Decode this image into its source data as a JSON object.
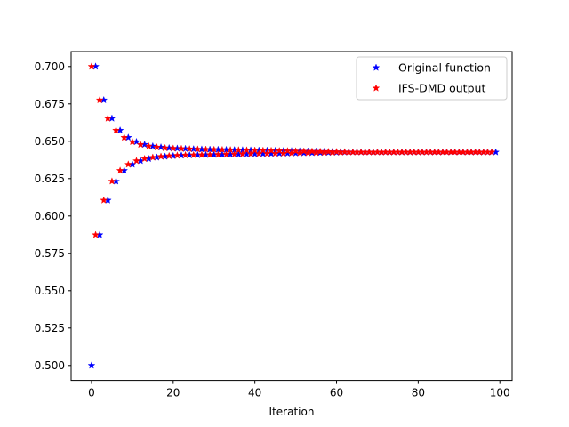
{
  "chart_data": {
    "type": "scatter",
    "title": "",
    "xlabel": "Iteration",
    "ylabel": "",
    "xlim": [
      -5,
      103
    ],
    "ylim": [
      0.49,
      0.71
    ],
    "xticks": [
      0,
      20,
      40,
      60,
      80,
      100
    ],
    "xtick_labels": [
      "0",
      "20",
      "40",
      "60",
      "80",
      "100"
    ],
    "yticks": [
      0.5,
      0.525,
      0.55,
      0.575,
      0.6,
      0.625,
      0.65,
      0.675,
      0.7
    ],
    "ytick_labels": [
      "0.500",
      "0.525",
      "0.550",
      "0.575",
      "0.600",
      "0.625",
      "0.650",
      "0.675",
      "0.700"
    ],
    "grid": false,
    "legend_position": "top-right",
    "marker": "star",
    "series": [
      {
        "name": "Original function",
        "color": "#0000ff",
        "x_start": 0,
        "x_end": 99,
        "values": [
          0.5,
          0.7,
          0.5874,
          0.6776,
          0.6105,
          0.6653,
          0.6232,
          0.6573,
          0.6304,
          0.6525,
          0.6345,
          0.6496,
          0.6369,
          0.6478,
          0.6383,
          0.6467,
          0.6392,
          0.646,
          0.6398,
          0.6455,
          0.6402,
          0.6452,
          0.6405,
          0.645,
          0.6407,
          0.6448,
          0.6408,
          0.6446,
          0.6409,
          0.6445,
          0.641,
          0.6444,
          0.6411,
          0.6443,
          0.6412,
          0.6442,
          0.6413,
          0.6441,
          0.6414,
          0.644,
          0.6415,
          0.6439,
          0.6416,
          0.6438,
          0.6417,
          0.6437,
          0.6418,
          0.6436,
          0.6419,
          0.6435,
          0.642,
          0.6434,
          0.6421,
          0.6433,
          0.6422,
          0.6432,
          0.6423,
          0.6431,
          0.6424,
          0.643,
          0.6425,
          0.6429,
          0.6426,
          0.6428,
          0.6427,
          0.6427,
          0.6427,
          0.6427,
          0.6427,
          0.6427,
          0.6427,
          0.6427,
          0.6427,
          0.6427,
          0.6427,
          0.6427,
          0.6427,
          0.6427,
          0.6427,
          0.6427,
          0.6427,
          0.6427,
          0.6427,
          0.6427,
          0.6427,
          0.6427,
          0.6427,
          0.6427,
          0.6427,
          0.6427,
          0.6427,
          0.6427,
          0.6427,
          0.6427,
          0.6427,
          0.6427,
          0.6427,
          0.6427,
          0.6427,
          0.6427
        ]
      },
      {
        "name": "IFS-DMD output",
        "color": "#ff0000",
        "x_start": 0,
        "x_end": 98,
        "values": [
          0.7,
          0.5874,
          0.6776,
          0.6105,
          0.6653,
          0.6232,
          0.6573,
          0.6304,
          0.6525,
          0.6345,
          0.6496,
          0.6369,
          0.6478,
          0.6383,
          0.6467,
          0.6392,
          0.646,
          0.6398,
          0.6455,
          0.6402,
          0.6452,
          0.6405,
          0.645,
          0.6407,
          0.6448,
          0.6408,
          0.6446,
          0.6409,
          0.6445,
          0.641,
          0.6444,
          0.6411,
          0.6443,
          0.6412,
          0.6442,
          0.6413,
          0.6441,
          0.6414,
          0.644,
          0.6415,
          0.6439,
          0.6416,
          0.6438,
          0.6417,
          0.6437,
          0.6418,
          0.6436,
          0.6419,
          0.6435,
          0.642,
          0.6434,
          0.6421,
          0.6433,
          0.6422,
          0.6432,
          0.6423,
          0.6431,
          0.6424,
          0.643,
          0.6425,
          0.6429,
          0.6426,
          0.6428,
          0.6427,
          0.6427,
          0.6427,
          0.6427,
          0.6427,
          0.6427,
          0.6427,
          0.6427,
          0.6427,
          0.6427,
          0.6427,
          0.6427,
          0.6427,
          0.6427,
          0.6427,
          0.6427,
          0.6427,
          0.6427,
          0.6427,
          0.6427,
          0.6427,
          0.6427,
          0.6427,
          0.6427,
          0.6427,
          0.6427,
          0.6427,
          0.6427,
          0.6427,
          0.6427,
          0.6427,
          0.6427,
          0.6427,
          0.6427,
          0.6427,
          0.6427
        ]
      }
    ]
  }
}
